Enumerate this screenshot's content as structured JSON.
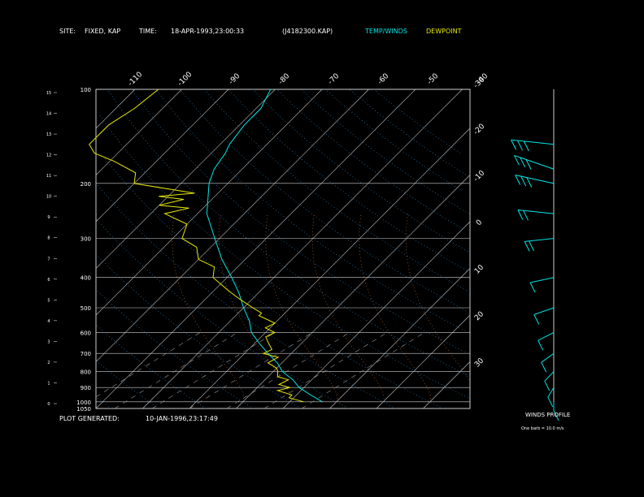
{
  "header": {
    "site_label": "SITE:",
    "site_value": "FIXED, KAP",
    "time_label": "TIME:",
    "time_value": "18-APR-1993,23:00:33",
    "file_id": "(J4182300.KAP)",
    "legend_temp": "TEMP/WINDS",
    "legend_dew": "DEWPOINT"
  },
  "footer": {
    "generated_label": "PLOT GENERATED:",
    "generated_value": "10-JAN-1996,23:17:49"
  },
  "wind_panel": {
    "title": "WINDS PROFILE",
    "note": "One barb = 10.0 m/s"
  },
  "colors": {
    "temp": "#00e5e5",
    "dewpoint": "#e8e800",
    "isobar": "#d0d0d0",
    "isotherm": "#c8c8c8",
    "header_text": "#ffffff",
    "legend_temp": "#00e5e5",
    "legend_dew": "#e8e800"
  },
  "chart_data": {
    "type": "line",
    "skew_t": true,
    "y_scale": "log",
    "ylim": [
      1050,
      100
    ],
    "xlim": [
      -40,
      40
    ],
    "pressure_labels": [
      "100",
      "200",
      "300",
      "400",
      "500",
      "600",
      "700",
      "800",
      "900",
      "1000",
      "1050"
    ],
    "pressure_levels": [
      100,
      200,
      300,
      400,
      500,
      600,
      700,
      800,
      900,
      1000,
      1050
    ],
    "height_ticks": [
      "0",
      "1",
      "2",
      "3",
      "4",
      "5",
      "6",
      "7",
      "8",
      "9",
      "10",
      "11",
      "12",
      "13",
      "14",
      "15"
    ],
    "bottom_temp_labels": [
      "-110",
      "-100",
      "-90",
      "-80",
      "-70",
      "-60",
      "-50",
      "-40"
    ],
    "right_temp_labels": [
      "-30",
      "-20",
      "-10",
      "0",
      "10",
      "20",
      "30"
    ],
    "right_temp_values": [
      -30,
      -20,
      -10,
      0,
      10,
      20,
      30
    ],
    "series": [
      {
        "name": "TEMP/WINDS",
        "points": [
          [
            1000,
            7
          ],
          [
            950,
            3
          ],
          [
            900,
            -1
          ],
          [
            850,
            -4
          ],
          [
            800,
            -8
          ],
          [
            750,
            -11
          ],
          [
            700,
            -15
          ],
          [
            650,
            -19
          ],
          [
            600,
            -23
          ],
          [
            550,
            -26
          ],
          [
            500,
            -30
          ],
          [
            450,
            -34
          ],
          [
            400,
            -39
          ],
          [
            350,
            -45
          ],
          [
            300,
            -51
          ],
          [
            250,
            -58
          ],
          [
            200,
            -64
          ],
          [
            180,
            -66
          ],
          [
            160,
            -67
          ],
          [
            150,
            -68
          ],
          [
            130,
            -69
          ],
          [
            115,
            -69
          ],
          [
            100,
            -71
          ]
        ]
      },
      {
        "name": "DEWPOINT",
        "points": [
          [
            1000,
            3
          ],
          [
            970,
            -1
          ],
          [
            950,
            -1
          ],
          [
            920,
            -5
          ],
          [
            900,
            -3
          ],
          [
            880,
            -6
          ],
          [
            850,
            -5
          ],
          [
            830,
            -8
          ],
          [
            800,
            -9
          ],
          [
            780,
            -10
          ],
          [
            750,
            -13
          ],
          [
            720,
            -12
          ],
          [
            700,
            -16
          ],
          [
            680,
            -15
          ],
          [
            650,
            -17
          ],
          [
            620,
            -19
          ],
          [
            600,
            -18
          ],
          [
            580,
            -21
          ],
          [
            560,
            -20
          ],
          [
            530,
            -25
          ],
          [
            520,
            -25
          ],
          [
            500,
            -28
          ],
          [
            480,
            -31
          ],
          [
            460,
            -34
          ],
          [
            440,
            -37
          ],
          [
            400,
            -43
          ],
          [
            370,
            -45
          ],
          [
            350,
            -50
          ],
          [
            320,
            -53
          ],
          [
            300,
            -58
          ],
          [
            270,
            -60
          ],
          [
            250,
            -67
          ],
          [
            240,
            -63
          ],
          [
            235,
            -70
          ],
          [
            225,
            -66
          ],
          [
            220,
            -72
          ],
          [
            215,
            -65
          ],
          [
            200,
            -80
          ],
          [
            185,
            -82
          ],
          [
            170,
            -89
          ],
          [
            160,
            -95
          ],
          [
            150,
            -98
          ],
          [
            130,
            -98
          ],
          [
            115,
            -96
          ],
          [
            100,
            -95
          ]
        ]
      }
    ],
    "winds_profile": [
      {
        "p": 150,
        "dir": 280,
        "spd": 28
      },
      {
        "p": 180,
        "dir": 300,
        "spd": 30
      },
      {
        "p": 200,
        "dir": 290,
        "spd": 26
      },
      {
        "p": 250,
        "dir": 280,
        "spd": 22
      },
      {
        "p": 300,
        "dir": 260,
        "spd": 16
      },
      {
        "p": 400,
        "dir": 250,
        "spd": 12
      },
      {
        "p": 500,
        "dir": 240,
        "spd": 10
      },
      {
        "p": 600,
        "dir": 230,
        "spd": 8
      },
      {
        "p": 700,
        "dir": 220,
        "spd": 7
      },
      {
        "p": 800,
        "dir": 210,
        "spd": 6
      },
      {
        "p": 900,
        "dir": 200,
        "spd": 5
      },
      {
        "p": 1000,
        "dir": 180,
        "spd": 3
      }
    ]
  }
}
